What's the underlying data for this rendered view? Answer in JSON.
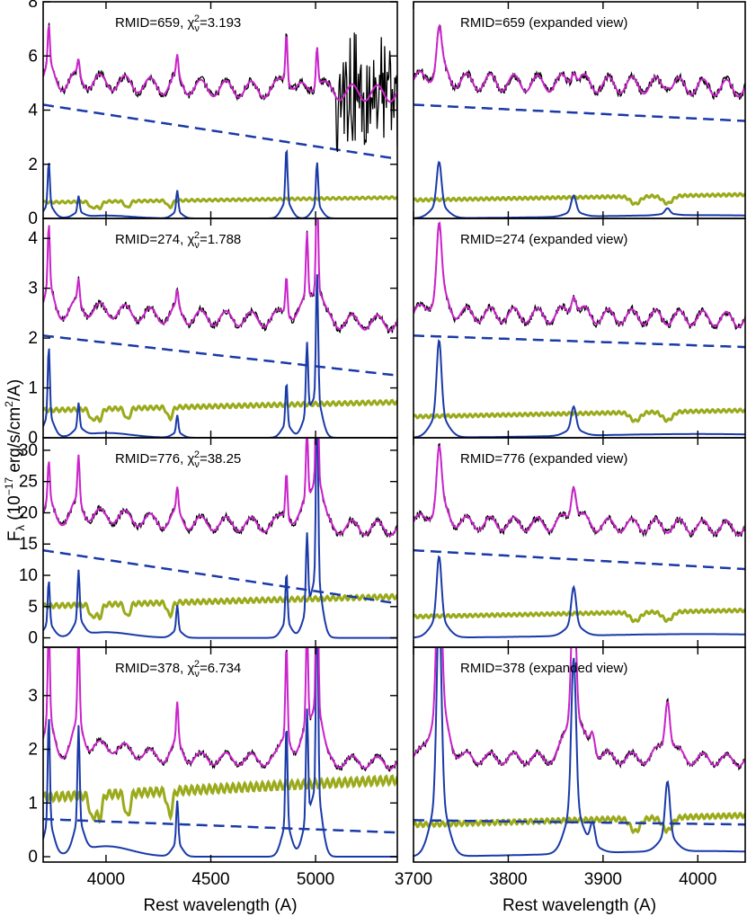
{
  "figure": {
    "ylabel_main": "F",
    "ylabel_sub": "λ",
    "ylabel_rest1": " (10",
    "ylabel_sup": "−17",
    "ylabel_rest2": " erg/s/cm",
    "ylabel_sup2": "2",
    "ylabel_rest3": "/A)"
  },
  "colors": {
    "data": "#000000",
    "model": "#cc22cc",
    "powerlaw": "#1a3aa8",
    "emission": "#1a3aa8",
    "host": "#9aaa1a"
  },
  "chart_data": [
    {
      "type": "line",
      "panel": "left-1",
      "title_prefix": "RMID=659,  χ",
      "title_sub": "ν",
      "title_sup": "2",
      "title_value": "=3.193",
      "xlim": [
        3700,
        5390
      ],
      "ylim": [
        0,
        8
      ],
      "yticks": [
        0,
        2,
        4,
        6,
        8
      ],
      "xticks": [
        4000,
        4500,
        5000
      ],
      "xlabel": "",
      "features": {
        "continuum_level": 5.0,
        "powerlaw_start": 4.2,
        "powerlaw_end": 2.2,
        "host_level": 0.7,
        "lines": [
          {
            "center": 3727,
            "height": 1.6
          },
          {
            "center": 3869,
            "height": 0.6
          },
          {
            "center": 4340,
            "height": 0.8
          },
          {
            "center": 4861,
            "height": 2.0
          },
          {
            "center": 5007,
            "height": 1.6
          }
        ],
        "noisy_from": 5100
      }
    },
    {
      "type": "line",
      "panel": "right-1",
      "title": "RMID=659  (expanded view)",
      "xlim": [
        3700,
        4050
      ],
      "ylim": [
        0,
        8
      ],
      "xticks": [
        3700,
        3800,
        3900,
        4000
      ],
      "features": {
        "continuum_level": 5.1,
        "powerlaw_start": 4.2,
        "powerlaw_end": 3.6,
        "host_level": 0.8,
        "lines": [
          {
            "center": 3727,
            "height": 1.6
          },
          {
            "center": 3869,
            "height": 0.6
          },
          {
            "center": 3968,
            "height": 0.2
          }
        ]
      }
    },
    {
      "type": "line",
      "panel": "left-2",
      "title_prefix": "RMID=274,  χ",
      "title_sub": "ν",
      "title_sup": "2",
      "title_value": "=1.788",
      "xlim": [
        3700,
        5390
      ],
      "ylim": [
        0,
        4.4
      ],
      "yticks": [
        0,
        1,
        2,
        3,
        4
      ],
      "xticks": [
        4000,
        4500,
        5000
      ],
      "features": {
        "continuum_level": 2.5,
        "powerlaw_start": 2.05,
        "powerlaw_end": 1.25,
        "host_level": 0.65,
        "lines": [
          {
            "center": 3727,
            "height": 1.4
          },
          {
            "center": 3869,
            "height": 0.5
          },
          {
            "center": 4340,
            "height": 0.35
          },
          {
            "center": 4861,
            "height": 0.85
          },
          {
            "center": 4959,
            "height": 1.4
          },
          {
            "center": 5007,
            "height": 2.5
          }
        ]
      }
    },
    {
      "type": "line",
      "panel": "right-2",
      "title": "RMID=274  (expanded view)",
      "xlim": [
        3700,
        4050
      ],
      "ylim": [
        0,
        4.4
      ],
      "xticks": [
        3700,
        3800,
        3900,
        4000
      ],
      "features": {
        "continuum_level": 2.5,
        "powerlaw_start": 2.05,
        "powerlaw_end": 1.82,
        "host_level": 0.5,
        "lines": [
          {
            "center": 3727,
            "height": 1.5
          },
          {
            "center": 3869,
            "height": 0.45
          }
        ]
      }
    },
    {
      "type": "line",
      "panel": "left-3",
      "title_prefix": "RMID=776,  χ",
      "title_sub": "ν",
      "title_sup": "2",
      "title_value": "=38.25",
      "xlim": [
        3700,
        5390
      ],
      "ylim": [
        -1.5,
        32
      ],
      "yticks": [
        0,
        5,
        10,
        15,
        20,
        25,
        30
      ],
      "xticks": [
        4000,
        4500,
        5000
      ],
      "features": {
        "continuum_level": 19.0,
        "powerlaw_start": 14.0,
        "powerlaw_end": 5.5,
        "host_level": 6.0,
        "lines": [
          {
            "center": 3727,
            "height": 7.0
          },
          {
            "center": 3869,
            "height": 8.0
          },
          {
            "center": 4340,
            "height": 4.0
          },
          {
            "center": 4861,
            "height": 8.0
          },
          {
            "center": 4959,
            "height": 12.0
          },
          {
            "center": 5007,
            "height": 30.0
          }
        ]
      }
    },
    {
      "type": "line",
      "panel": "right-3",
      "title": "RMID=776  (expanded view)",
      "xlim": [
        3700,
        4050
      ],
      "ylim": [
        -1.5,
        32
      ],
      "xticks": [
        3700,
        3800,
        3900,
        4000
      ],
      "features": {
        "continuum_level": 18.5,
        "powerlaw_start": 14.0,
        "powerlaw_end": 11.0,
        "host_level": 4.0,
        "lines": [
          {
            "center": 3727,
            "height": 10.0
          },
          {
            "center": 3869,
            "height": 6.0
          }
        ]
      }
    },
    {
      "type": "line",
      "panel": "left-4",
      "title_prefix": "RMID=378,  χ",
      "title_sub": "ν",
      "title_sup": "2",
      "title_value": "=6.734",
      "xlim": [
        3700,
        5390
      ],
      "ylim": [
        -0.1,
        3.9
      ],
      "yticks": [
        0,
        1,
        2,
        3
      ],
      "xticks": [
        4000,
        4500,
        5000
      ],
      "xlabel": "Rest wavelength (A)",
      "features": {
        "continuum_level": 1.9,
        "powerlaw_start": 0.7,
        "powerlaw_end": 0.45,
        "host_level": 1.3,
        "lines": [
          {
            "center": 3727,
            "height": 2.0
          },
          {
            "center": 3869,
            "height": 1.8
          },
          {
            "center": 4340,
            "height": 0.8
          },
          {
            "center": 4861,
            "height": 1.9
          },
          {
            "center": 4959,
            "height": 2.0
          },
          {
            "center": 5007,
            "height": 3.8
          }
        ]
      }
    },
    {
      "type": "line",
      "panel": "right-4",
      "title": "RMID=378  (expanded view)",
      "xlim": [
        3700,
        4050
      ],
      "ylim": [
        -0.1,
        3.9
      ],
      "xticks": [
        3700,
        3800,
        3900,
        4000
      ],
      "xlabel": "Rest wavelength (A)",
      "features": {
        "continuum_level": 1.85,
        "powerlaw_start": 0.68,
        "powerlaw_end": 0.6,
        "host_level": 0.7,
        "lines": [
          {
            "center": 3727,
            "height": 3.6
          },
          {
            "center": 3869,
            "height": 2.8
          },
          {
            "center": 3889,
            "height": 0.4
          },
          {
            "center": 3968,
            "height": 1.0
          }
        ]
      }
    }
  ]
}
